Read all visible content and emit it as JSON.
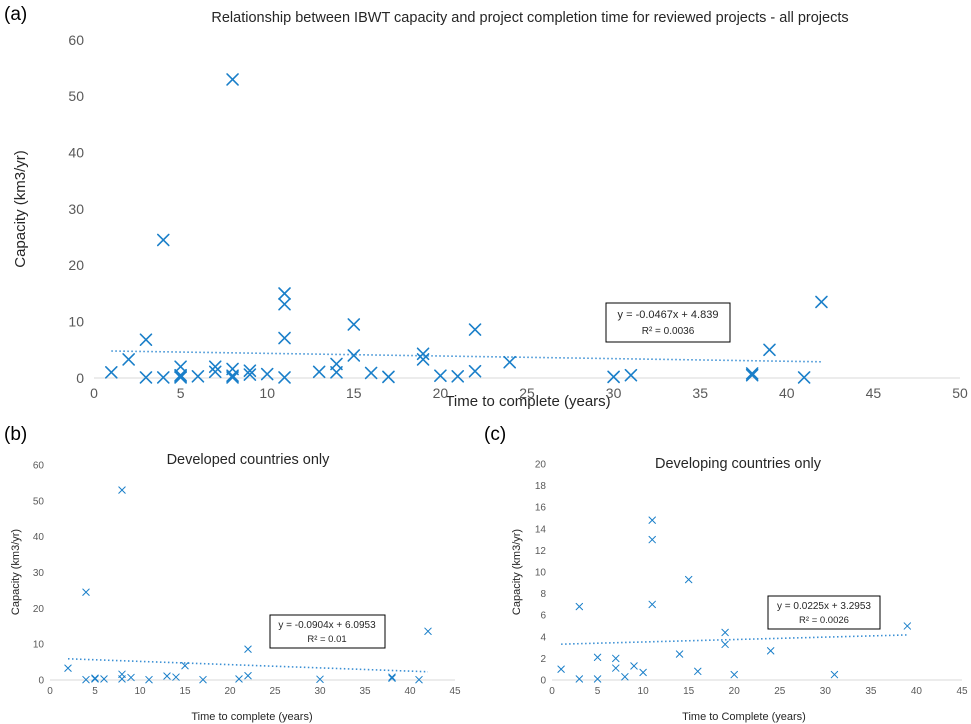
{
  "colors": {
    "marker": "#1a7fc9",
    "trend": "#3a8fd4"
  },
  "chart_data": [
    {
      "id": "a",
      "type": "scatter",
      "panel_label": "(a)",
      "title": "Relationship between IBWT capacity and project completion time for reviewed projects - all projects",
      "xlabel": "Time to complete (years)",
      "ylabel": "Capacity (km3/yr)",
      "xlim": [
        0,
        50
      ],
      "ylim": [
        0,
        60
      ],
      "xticks": [
        0,
        5,
        10,
        15,
        20,
        25,
        30,
        35,
        40,
        45,
        50
      ],
      "yticks": [
        0,
        10,
        20,
        30,
        40,
        50,
        60
      ],
      "grid": false,
      "trendline": {
        "slope": -0.0467,
        "intercept": 4.839,
        "x_range": [
          1,
          42
        ]
      },
      "equation": "y = -0.0467x + 4.839",
      "r2": "R² = 0.0036",
      "points": [
        [
          1,
          1
        ],
        [
          2,
          3.3
        ],
        [
          3,
          6.8
        ],
        [
          3,
          0.1
        ],
        [
          4,
          24.5
        ],
        [
          4,
          0.1
        ],
        [
          5,
          2
        ],
        [
          5,
          0.5
        ],
        [
          5,
          0.1
        ],
        [
          5,
          0.3
        ],
        [
          6,
          0.3
        ],
        [
          7,
          2
        ],
        [
          7,
          1.1
        ],
        [
          8,
          53
        ],
        [
          8,
          1.6
        ],
        [
          8,
          0.1
        ],
        [
          8,
          0.4
        ],
        [
          9,
          1.3
        ],
        [
          9,
          0.6
        ],
        [
          10,
          0.7
        ],
        [
          11,
          15
        ],
        [
          11,
          13.1
        ],
        [
          11,
          7.1
        ],
        [
          11,
          0.1
        ],
        [
          13,
          1.1
        ],
        [
          14,
          2.5
        ],
        [
          14,
          1
        ],
        [
          15,
          9.5
        ],
        [
          15,
          4
        ],
        [
          16,
          0.9
        ],
        [
          17,
          0.2
        ],
        [
          19,
          4.3
        ],
        [
          19,
          3.3
        ],
        [
          20,
          0.4
        ],
        [
          21,
          0.3
        ],
        [
          22,
          8.6
        ],
        [
          22,
          1.2
        ],
        [
          24,
          2.8
        ],
        [
          30,
          0.2
        ],
        [
          31,
          0.5
        ],
        [
          38,
          0.8
        ],
        [
          38,
          0.5
        ],
        [
          39,
          5
        ],
        [
          41,
          0.1
        ],
        [
          42,
          13.5
        ]
      ]
    },
    {
      "id": "b",
      "type": "scatter",
      "panel_label": "(b)",
      "title": "Developed countries only",
      "xlabel": "Time to complete (years)",
      "ylabel": "Capacity (km3/yr)",
      "xlim": [
        0,
        45
      ],
      "ylim": [
        0,
        60
      ],
      "xticks": [
        0,
        5,
        10,
        15,
        20,
        25,
        30,
        35,
        40,
        45
      ],
      "yticks": [
        0,
        10,
        20,
        30,
        40,
        50,
        60
      ],
      "grid": false,
      "trendline": {
        "slope": -0.0904,
        "intercept": 6.0953,
        "x_range": [
          2,
          42
        ]
      },
      "equation": "y = -0.0904x + 6.0953",
      "r2": "R² = 0.01",
      "points": [
        [
          2,
          3.3
        ],
        [
          4,
          24.5
        ],
        [
          4,
          0.1
        ],
        [
          5,
          0.5
        ],
        [
          5,
          0.3
        ],
        [
          6,
          0.3
        ],
        [
          8,
          53
        ],
        [
          8,
          1.6
        ],
        [
          8,
          0.3
        ],
        [
          9,
          0.7
        ],
        [
          11,
          0.1
        ],
        [
          13,
          1.1
        ],
        [
          14,
          0.8
        ],
        [
          15,
          4
        ],
        [
          17,
          0.1
        ],
        [
          21,
          0.3
        ],
        [
          22,
          8.6
        ],
        [
          22,
          1.2
        ],
        [
          30,
          0.2
        ],
        [
          38,
          0.8
        ],
        [
          38,
          0.5
        ],
        [
          41,
          0.1
        ],
        [
          42,
          13.6
        ]
      ]
    },
    {
      "id": "c",
      "type": "scatter",
      "panel_label": "(c)",
      "title": "Developing countries only",
      "xlabel": "Time to Complete (years)",
      "ylabel": "Capacity (km3/yr)",
      "xlim": [
        0,
        45
      ],
      "ylim": [
        0,
        20
      ],
      "xticks": [
        0,
        5,
        10,
        15,
        20,
        25,
        30,
        35,
        40,
        45
      ],
      "yticks": [
        0,
        2,
        4,
        6,
        8,
        10,
        12,
        14,
        16,
        18,
        20
      ],
      "grid": false,
      "trendline": {
        "slope": 0.0225,
        "intercept": 3.2953,
        "x_range": [
          1,
          39
        ]
      },
      "equation": "y = 0.0225x + 3.2953",
      "r2": "R² = 0.0026",
      "points": [
        [
          1,
          1
        ],
        [
          3,
          6.8
        ],
        [
          3,
          0.1
        ],
        [
          5,
          2.1
        ],
        [
          5,
          0.1
        ],
        [
          7,
          2
        ],
        [
          7,
          1.1
        ],
        [
          8,
          0.3
        ],
        [
          9,
          1.3
        ],
        [
          10,
          0.7
        ],
        [
          11,
          14.8
        ],
        [
          11,
          13
        ],
        [
          11,
          7
        ],
        [
          14,
          2.4
        ],
        [
          15,
          9.3
        ],
        [
          16,
          0.8
        ],
        [
          19,
          4.4
        ],
        [
          19,
          3.3
        ],
        [
          20,
          0.5
        ],
        [
          24,
          2.7
        ],
        [
          31,
          0.5
        ],
        [
          39,
          5
        ]
      ]
    }
  ]
}
